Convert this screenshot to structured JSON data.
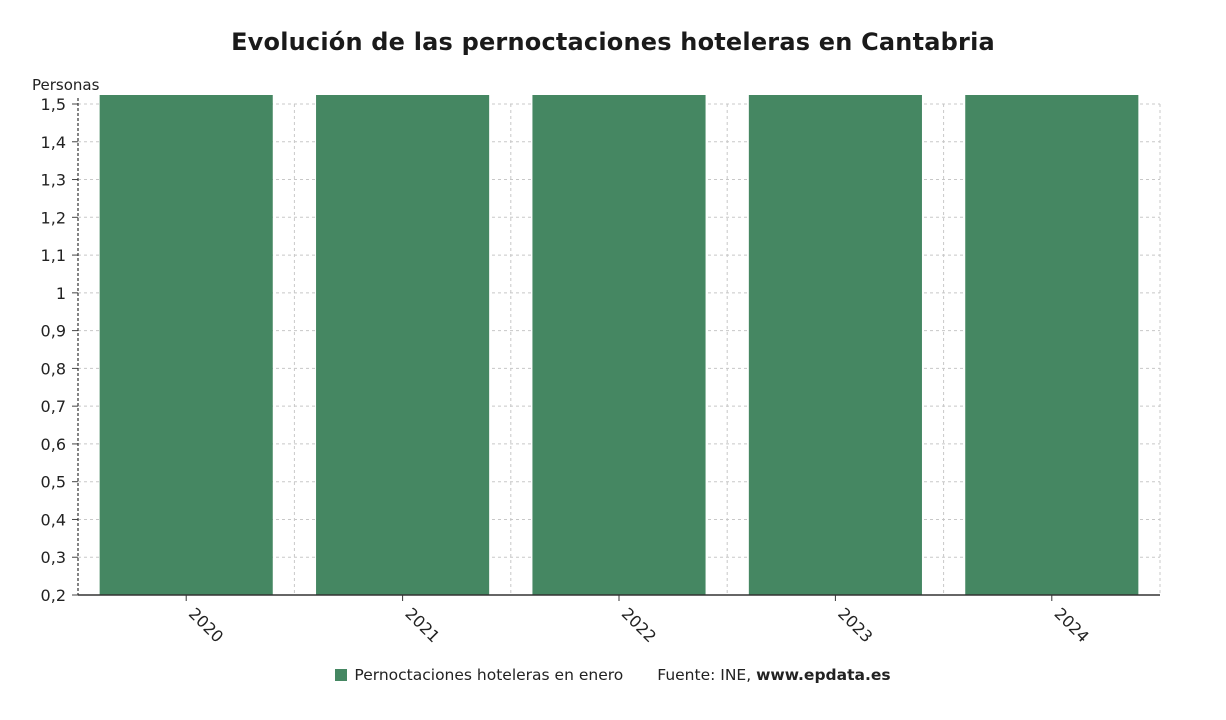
{
  "chart_data": {
    "type": "bar",
    "title": "Evolución de las pernoctaciones hoteleras en Cantabria",
    "ylabel": "Personas",
    "xlabel": "",
    "categories": [
      "2020",
      "2021",
      "2022",
      "2023",
      "2024"
    ],
    "series": [
      {
        "name": "Pernoctaciones hoteleras en enero",
        "values": [
          1.5,
          1.5,
          1.5,
          1.5,
          1.5
        ]
      }
    ],
    "ylim": [
      0.2,
      1.5
    ],
    "yticks": [
      "1,5",
      "1,4",
      "1,3",
      "1,2",
      "1,1",
      "1",
      "0,9",
      "0,8",
      "0,7",
      "0,6",
      "0,5",
      "0,4",
      "0,3",
      "0,2"
    ],
    "ytick_values": [
      1.5,
      1.4,
      1.3,
      1.2,
      1.1,
      1.0,
      0.9,
      0.8,
      0.7,
      0.6,
      0.5,
      0.4,
      0.3,
      0.2
    ],
    "grid": true,
    "legend_position": "bottom",
    "bar_color": "#458762",
    "grid_color": "#c8c8c8"
  },
  "footer": {
    "source_prefix": "Fuente: INE, ",
    "source_site": "www.epdata.es"
  }
}
